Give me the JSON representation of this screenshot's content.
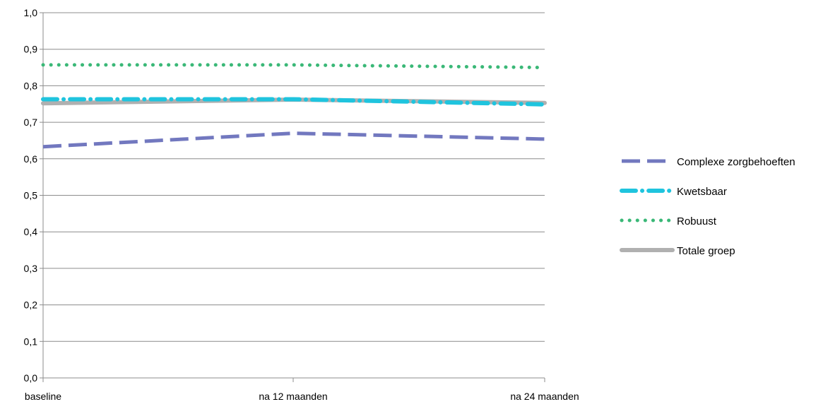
{
  "chart_data": {
    "type": "line",
    "categories": [
      "baseline",
      "na 12 maanden",
      "na 24 maanden"
    ],
    "ylim": [
      0,
      1.0
    ],
    "yticks": [
      "0,0",
      "0,1",
      "0,2",
      "0,3",
      "0,4",
      "0,5",
      "0,6",
      "0,7",
      "0,8",
      "0,9",
      "1,0"
    ],
    "grid": true,
    "legend_position": "right",
    "series": [
      {
        "name": "Complexe zorgbehoeften",
        "values": [
          0.633,
          0.67,
          0.654
        ],
        "color": "#7278bf",
        "style": "long-dash"
      },
      {
        "name": "Kwetsbaar",
        "values": [
          0.763,
          0.763,
          0.749
        ],
        "color": "#1fc4de",
        "style": "dash-dot"
      },
      {
        "name": "Robuust",
        "values": [
          0.857,
          0.857,
          0.85
        ],
        "color": "#3ab877",
        "style": "dotted"
      },
      {
        "name": "Totale groep",
        "values": [
          0.752,
          0.762,
          0.753
        ],
        "color": "#b0b0b0",
        "style": "solid"
      }
    ]
  }
}
